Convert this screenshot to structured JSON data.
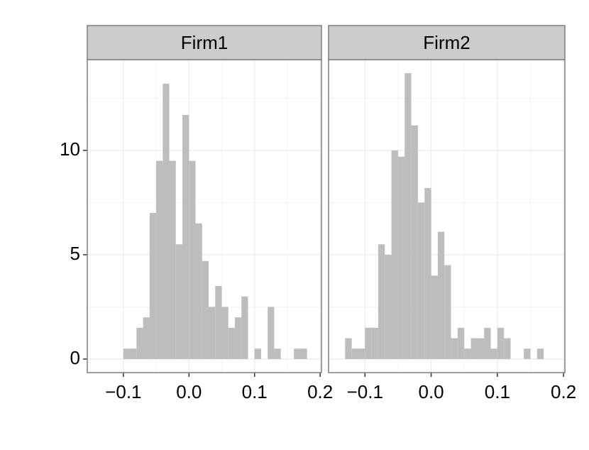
{
  "chart_data": [
    {
      "type": "histogram",
      "strip": "Firm1",
      "color": "#bdbdbd",
      "show_yaxis": true,
      "bins": [
        -0.1,
        -0.09,
        -0.08,
        -0.07,
        -0.06,
        -0.05,
        -0.04,
        -0.03,
        -0.02,
        -0.01,
        0,
        0.01,
        0.02,
        0.03,
        0.04,
        0.05,
        0.06,
        0.07,
        0.08,
        0.09,
        0.1,
        0.11,
        0.12,
        0.13,
        0.14,
        0.15,
        0.16,
        0.17,
        0.18
      ],
      "counts": [
        0.5,
        0.5,
        1.5,
        2,
        7,
        9.5,
        13.2,
        9.5,
        5.5,
        11.7,
        9.5,
        6.5,
        4.7,
        2.5,
        3.5,
        2.5,
        1.5,
        2,
        3,
        0,
        0.5,
        0,
        2.5,
        0.5,
        0,
        0,
        0.5,
        0.5
      ],
      "xlim": [
        -0.155,
        0.202
      ],
      "ylim": [
        -0.65,
        14.35
      ],
      "xticks": [
        {
          "value": -0.1,
          "label": "−0.1"
        },
        {
          "value": 0,
          "label": "0.0"
        },
        0.1,
        0.2
      ],
      "yticks": [
        0,
        5,
        10
      ],
      "minor_xticks": [
        -0.15,
        -0.05,
        0.05,
        0.15
      ],
      "minor_yticks": [
        2.5,
        7.5,
        12.5
      ]
    },
    {
      "type": "histogram",
      "strip": "Firm2",
      "color": "#bdbdbd",
      "show_yaxis": false,
      "bins": [
        -0.13,
        -0.12,
        -0.11,
        -0.1,
        -0.09,
        -0.08,
        -0.07,
        -0.06,
        -0.05,
        -0.04,
        -0.03,
        -0.02,
        -0.01,
        0,
        0.01,
        0.02,
        0.03,
        0.04,
        0.05,
        0.06,
        0.07,
        0.08,
        0.09,
        0.1,
        0.11,
        0.12,
        0.13,
        0.14,
        0.15,
        0.16,
        0.17
      ],
      "counts": [
        1,
        0.5,
        0.5,
        1.5,
        1.5,
        5.5,
        5,
        10,
        9.7,
        13.7,
        11.2,
        7.5,
        8.2,
        4,
        6.1,
        4.5,
        1,
        1.5,
        0.5,
        1,
        1,
        1.5,
        0.5,
        1.5,
        1,
        0,
        0,
        0.5,
        0,
        0.5
      ],
      "xlim": [
        -0.155,
        0.202
      ],
      "ylim": [
        -0.65,
        14.35
      ],
      "xticks": [
        {
          "value": -0.1,
          "label": "−0.1"
        },
        {
          "value": 0,
          "label": "0.0"
        },
        0.1,
        0.2
      ],
      "yticks": [
        0,
        5,
        10
      ],
      "minor_xticks": [
        -0.15,
        -0.05,
        0.05,
        0.15
      ],
      "minor_yticks": [
        2.5,
        7.5,
        12.5
      ]
    }
  ]
}
